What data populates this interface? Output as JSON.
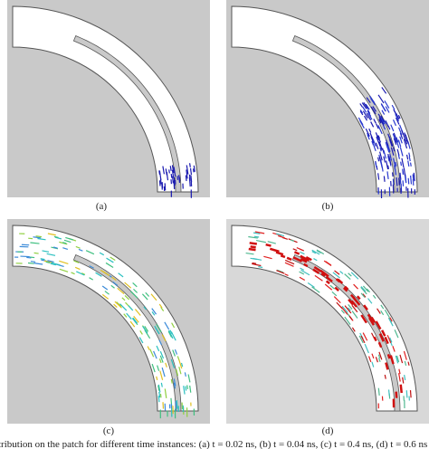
{
  "panels": [
    {
      "label": "(a)"
    },
    {
      "label": "(b)"
    },
    {
      "label": "(c)"
    },
    {
      "label": "(d)"
    }
  ],
  "caption": "tribution on the patch for different time instances: (a) t = 0.02 ns, (b) t = 0.04 ns, (c) t = 0.4 ns, (d) t = 0.6 ns"
}
